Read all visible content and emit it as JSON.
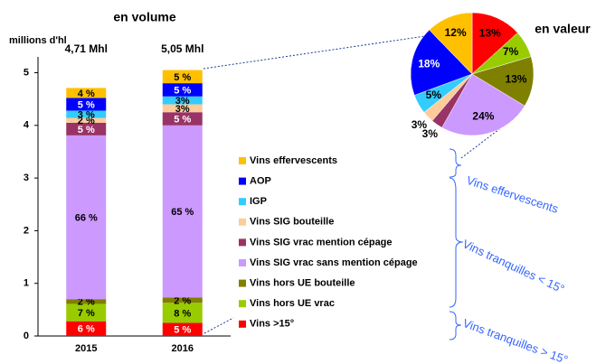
{
  "chart_data": [
    {
      "type": "stacked-bar",
      "title": "en volume",
      "y_label": "millions d'hl",
      "categories": [
        "2015",
        "2016"
      ],
      "totals": [
        "4,71 Mhl",
        "5,05 Mhl"
      ],
      "ylim": [
        0,
        5.3
      ],
      "yticks": [
        0,
        1,
        2,
        3,
        4,
        5
      ],
      "series": [
        {
          "name": "Vins >15°",
          "color": "#ff0000",
          "values": [
            0.28,
            0.25
          ],
          "value_labels": [
            "6 %",
            "5 %"
          ]
        },
        {
          "name": "Vins hors UE vrac",
          "color": "#99cc00",
          "values": [
            0.33,
            0.38
          ],
          "value_labels": [
            "7 %",
            "8 %"
          ]
        },
        {
          "name": "Vins hors UE bouteille",
          "color": "#808000",
          "values": [
            0.09,
            0.1
          ],
          "value_labels": [
            "2 %",
            "2 %"
          ]
        },
        {
          "name": "Vins SIG vrac sans mention cépage",
          "color": "#cc99ff",
          "values": [
            3.11,
            3.27
          ],
          "value_labels": [
            "66 %",
            "65 %"
          ]
        },
        {
          "name": "Vins SIG vrac mention cépage",
          "color": "#993366",
          "values": [
            0.24,
            0.25
          ],
          "value_labels": [
            "5 %",
            "5 %"
          ]
        },
        {
          "name": "Vins SIG bouteille",
          "color": "#ffcc99",
          "values": [
            0.09,
            0.15
          ],
          "value_labels": [
            "2 %",
            "3%"
          ]
        },
        {
          "name": "IGP",
          "color": "#33ccff",
          "values": [
            0.14,
            0.15
          ],
          "value_labels": [
            "3 %",
            "3%"
          ]
        },
        {
          "name": "AOP",
          "color": "#0000ff",
          "values": [
            0.24,
            0.25
          ],
          "value_labels": [
            "5 %",
            "5 %"
          ]
        },
        {
          "name": "Vins effervescents",
          "color": "#ffc000",
          "values": [
            0.19,
            0.25
          ],
          "value_labels": [
            "4 %",
            "5 %"
          ]
        }
      ]
    },
    {
      "type": "pie",
      "title": "en valeur",
      "values": [
        13,
        7,
        13,
        24,
        3,
        3,
        5,
        18,
        12
      ],
      "value_labels": [
        "13%",
        "7%",
        "13%",
        "24%",
        "3%",
        "3%",
        "5%",
        "18%",
        "12%"
      ],
      "colors": [
        "#ff0000",
        "#99cc00",
        "#808000",
        "#cc99ff",
        "#993366",
        "#ffcc99",
        "#33ccff",
        "#0000ff",
        "#ffc000"
      ]
    }
  ],
  "annotations": [
    "Vins effervescents",
    "Vins tranquilles < 15°",
    "Vins tranquilles > 15°"
  ]
}
